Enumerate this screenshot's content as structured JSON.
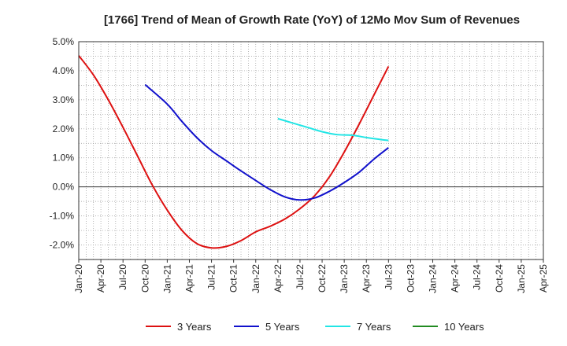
{
  "chart_data": {
    "type": "line",
    "title": "[1766]  Trend of Mean of Growth Rate (YoY) of 12Mo Mov Sum of Revenues",
    "xlabel": "",
    "ylabel": "",
    "ylim": [
      -2.5,
      5.0
    ],
    "grid": true,
    "legend_position": "bottom",
    "x_tick_labels": [
      "Jan-20",
      "Apr-20",
      "Jul-20",
      "Oct-20",
      "Jan-21",
      "Apr-21",
      "Jul-21",
      "Oct-21",
      "Jan-22",
      "Apr-22",
      "Jul-22",
      "Oct-22",
      "Jan-23",
      "Apr-23",
      "Jul-23",
      "Oct-23",
      "Jan-24",
      "Apr-24",
      "Jul-24",
      "Oct-24",
      "Jan-25",
      "Apr-25"
    ],
    "y_ticks": [
      {
        "value": 5.0,
        "label": "5.0%"
      },
      {
        "value": 4.0,
        "label": "4.0%"
      },
      {
        "value": 3.0,
        "label": "3.0%"
      },
      {
        "value": 2.0,
        "label": "2.0%"
      },
      {
        "value": 1.0,
        "label": "1.0%"
      },
      {
        "value": 0.0,
        "label": "0.0%"
      },
      {
        "value": -1.0,
        "label": "-1.0%"
      },
      {
        "value": -2.0,
        "label": "-2.0%"
      }
    ],
    "series": [
      {
        "name": "3 Years",
        "color": "#dd1111",
        "points": [
          [
            0,
            4.52
          ],
          [
            2,
            3.85
          ],
          [
            4,
            3.0
          ],
          [
            6,
            2.05
          ],
          [
            8,
            1.05
          ],
          [
            10,
            0.05
          ],
          [
            12,
            -0.8
          ],
          [
            14,
            -1.5
          ],
          [
            16,
            -1.95
          ],
          [
            18,
            -2.1
          ],
          [
            20,
            -2.05
          ],
          [
            22,
            -1.85
          ],
          [
            24,
            -1.55
          ],
          [
            26,
            -1.35
          ],
          [
            28,
            -1.1
          ],
          [
            30,
            -0.75
          ],
          [
            32,
            -0.3
          ],
          [
            34,
            0.35
          ],
          [
            36,
            1.2
          ],
          [
            38,
            2.15
          ],
          [
            40,
            3.15
          ],
          [
            42,
            4.15
          ]
        ]
      },
      {
        "name": "5 Years",
        "color": "#1111cc",
        "points": [
          [
            9,
            3.52
          ],
          [
            12,
            2.85
          ],
          [
            14,
            2.25
          ],
          [
            16,
            1.7
          ],
          [
            18,
            1.25
          ],
          [
            20,
            0.9
          ],
          [
            22,
            0.55
          ],
          [
            24,
            0.22
          ],
          [
            26,
            -0.1
          ],
          [
            28,
            -0.35
          ],
          [
            30,
            -0.45
          ],
          [
            32,
            -0.38
          ],
          [
            34,
            -0.15
          ],
          [
            36,
            0.15
          ],
          [
            38,
            0.5
          ],
          [
            40,
            0.95
          ],
          [
            42,
            1.35
          ]
        ]
      },
      {
        "name": "7 Years",
        "color": "#22e5e5",
        "points": [
          [
            27,
            2.35
          ],
          [
            29,
            2.2
          ],
          [
            31,
            2.05
          ],
          [
            33,
            1.9
          ],
          [
            35,
            1.8
          ],
          [
            37,
            1.78
          ],
          [
            39,
            1.7
          ],
          [
            41,
            1.63
          ],
          [
            42,
            1.6
          ]
        ]
      },
      {
        "name": "10 Years",
        "color": "#228B22",
        "points": []
      }
    ]
  }
}
